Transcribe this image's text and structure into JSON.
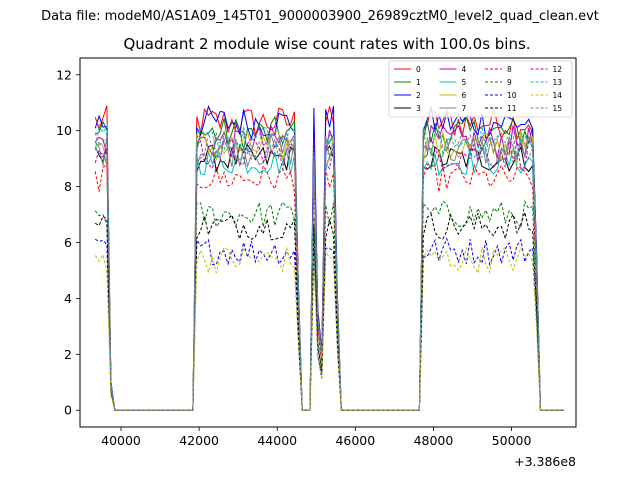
{
  "suptitle": "Data file: modeM0/AS1A09_145T01_9000003900_26989cztM0_level2_quad_clean.evt",
  "chart_data": {
    "type": "line",
    "title": "Quadrant 2 module wise count rates with 100.0s bins.",
    "xlabel": "",
    "ylabel": "",
    "x_offset_label": "+3.386e8",
    "x_offset": 338600000,
    "xlim": [
      38950,
      51650
    ],
    "ylim": [
      -0.6,
      12.6
    ],
    "x_ticks": [
      40000,
      42000,
      44000,
      46000,
      48000,
      50000
    ],
    "x_tick_labels": [
      "40000",
      "42000",
      "44000",
      "46000",
      "48000",
      "50000"
    ],
    "y_ticks": [
      0,
      2,
      4,
      6,
      8,
      10,
      12
    ],
    "y_tick_labels": [
      "0",
      "2",
      "4",
      "6",
      "8",
      "10",
      "12"
    ],
    "grid": false,
    "legend_position": "top-right",
    "legend_columns": 4,
    "bin_seconds": 100,
    "x_start": 39340,
    "x_bin_count": 121,
    "active_intervals": [
      {
        "from": 39340,
        "to": 39740
      },
      {
        "from": 41940,
        "to": 44540
      },
      {
        "from": 44940,
        "to": 45040
      },
      {
        "from": 45140,
        "to": 45540
      },
      {
        "from": 47740,
        "to": 50640
      }
    ],
    "series": [
      {
        "name": "0",
        "color": "#ff0000",
        "style": "solid",
        "level": 10.3
      },
      {
        "name": "1",
        "color": "#008000",
        "style": "solid",
        "level": 9.9
      },
      {
        "name": "2",
        "color": "#0000ff",
        "style": "solid",
        "level": 10.3
      },
      {
        "name": "3",
        "color": "#000000",
        "style": "solid",
        "level": 9.0
      },
      {
        "name": "4",
        "color": "#bf00bf",
        "style": "solid",
        "level": 9.6
      },
      {
        "name": "5",
        "color": "#00bfbf",
        "style": "solid",
        "level": 8.9
      },
      {
        "name": "6",
        "color": "#bfbf00",
        "style": "solid",
        "level": 9.4
      },
      {
        "name": "7",
        "color": "#808080",
        "style": "solid",
        "level": 9.3
      },
      {
        "name": "8",
        "color": "#ff0000",
        "style": "dashed",
        "level": 8.3
      },
      {
        "name": "9",
        "color": "#008000",
        "style": "dashed",
        "level": 7.0
      },
      {
        "name": "10",
        "color": "#0000ff",
        "style": "dashed",
        "level": 5.7
      },
      {
        "name": "11",
        "color": "#000000",
        "style": "dashed",
        "level": 6.6
      },
      {
        "name": "12",
        "color": "#bf00bf",
        "style": "dashed",
        "level": 9.2
      },
      {
        "name": "13",
        "color": "#00bfbf",
        "style": "dashed",
        "level": 9.6
      },
      {
        "name": "14",
        "color": "#bfbf00",
        "style": "dashed",
        "level": 5.4
      },
      {
        "name": "15",
        "color": "#808080",
        "style": "dashed",
        "level": 9.5
      }
    ]
  }
}
